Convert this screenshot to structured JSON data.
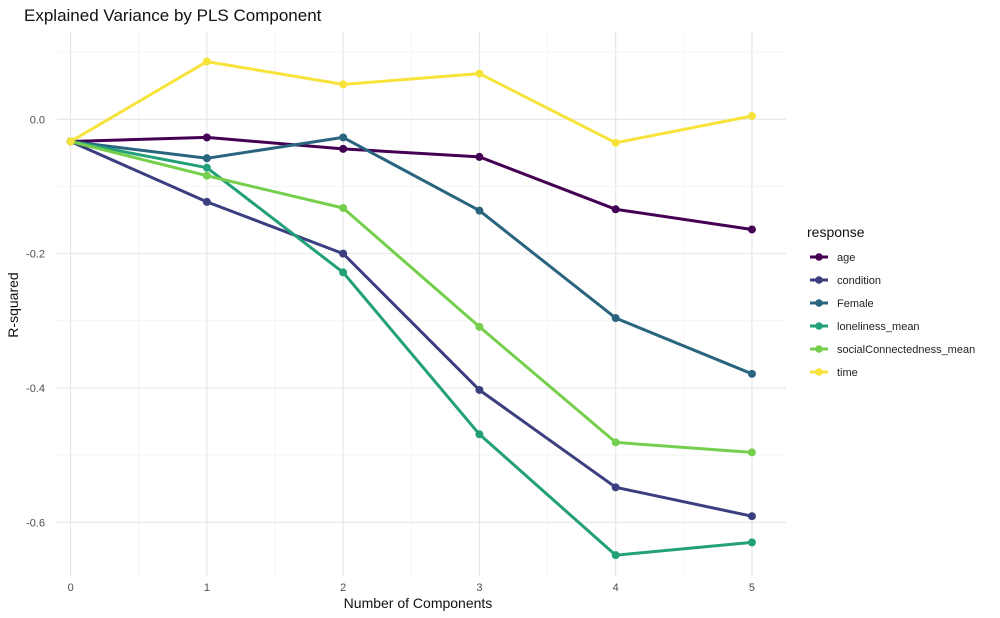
{
  "chart_data": {
    "type": "line",
    "title": "Explained Variance by PLS Component",
    "xlabel": "Number of Components",
    "ylabel": "R-squared",
    "x": [
      0,
      1,
      2,
      3,
      4,
      5
    ],
    "xlim": [
      -0.1,
      5.25
    ],
    "ylim": [
      -0.68,
      0.13
    ],
    "x_ticks": [
      0,
      1,
      2,
      3,
      4,
      5
    ],
    "x_tick_labels": [
      "0",
      "1",
      "2",
      "3",
      "4",
      "5"
    ],
    "y_ticks": [
      0.0,
      -0.2,
      -0.4,
      -0.6
    ],
    "y_tick_labels": [
      "0.0",
      "-0.2",
      "-0.4",
      "-0.6"
    ],
    "grid": true,
    "legend": {
      "title": "response",
      "placement": "right"
    },
    "series": [
      {
        "name": "age",
        "color": "#440154",
        "values": [
          -0.033,
          -0.027,
          -0.044,
          -0.056,
          -0.134,
          -0.164
        ]
      },
      {
        "name": "condition",
        "color": "#3B3F7F",
        "values": [
          -0.033,
          -0.123,
          -0.2,
          -0.403,
          -0.548,
          -0.591
        ]
      },
      {
        "name": "Female",
        "color": "#2A6580",
        "values": [
          -0.033,
          -0.058,
          -0.027,
          -0.136,
          -0.296,
          -0.379
        ]
      },
      {
        "name": "loneliness_mean",
        "color": "#22A07A",
        "values": [
          -0.033,
          -0.072,
          -0.228,
          -0.469,
          -0.649,
          -0.63
        ]
      },
      {
        "name": "socialConnectedness_mean",
        "color": "#76CF4C",
        "values": [
          -0.033,
          -0.084,
          -0.132,
          -0.309,
          -0.481,
          -0.496
        ]
      },
      {
        "name": "time",
        "color": "#F7E33A",
        "values": [
          -0.033,
          0.086,
          0.052,
          0.068,
          -0.035,
          0.005
        ]
      }
    ]
  }
}
